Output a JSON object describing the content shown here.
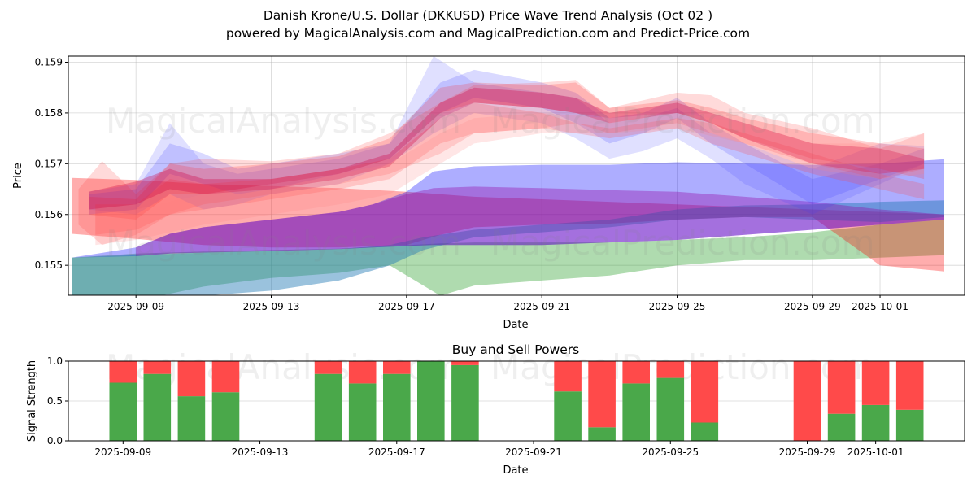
{
  "header": {
    "title_line1": "Danish Krone/U.S. Dollar (DKKUSD) Price Wave Trend Analysis (Oct 02 )",
    "title_line2": "powered by MagicalAnalysis.com and MagicalPrediction.com and Predict-Price.com"
  },
  "watermarks": {
    "left": "MagicalAnalysis.com",
    "right": "MagicalPrediction.com"
  },
  "chart_data": [
    {
      "type": "area",
      "title": "",
      "xlabel": "Date",
      "ylabel": "Price",
      "x_unit": "days relative to 2025-09-09",
      "xlim": [
        -2.0,
        24.5
      ],
      "ylim": [
        0.15441,
        0.15912
      ],
      "grid": true,
      "xticks": [
        {
          "day": 0,
          "label": "2025-09-09"
        },
        {
          "day": 4,
          "label": "2025-09-13"
        },
        {
          "day": 8,
          "label": "2025-09-17"
        },
        {
          "day": 12,
          "label": "2025-09-21"
        },
        {
          "day": 16,
          "label": "2025-09-25"
        },
        {
          "day": 20,
          "label": "2025-09-29"
        },
        {
          "day": 22,
          "label": "2025-10-01"
        }
      ],
      "yticks": [
        {
          "value": 0.155,
          "label": "0.155"
        },
        {
          "value": 0.156,
          "label": "0.156"
        },
        {
          "value": 0.157,
          "label": "0.157"
        },
        {
          "value": 0.158,
          "label": "0.158"
        },
        {
          "value": 0.159,
          "label": "0.159"
        }
      ],
      "bands": [
        {
          "name": "long-green",
          "color": "#2ca02c",
          "opacity": 0.38,
          "x": [
            -1.9,
            0,
            2,
            4,
            6,
            7.5,
            9,
            10,
            12,
            14,
            16,
            18,
            20,
            22,
            23.9
          ],
          "upper": [
            0.15515,
            0.15523,
            0.15527,
            0.1553,
            0.15533,
            0.15538,
            0.15543,
            0.15545,
            0.15545,
            0.15545,
            0.1555,
            0.15555,
            0.15565,
            0.1558,
            0.1559
          ],
          "lower": [
            0.1543,
            0.1543,
            0.15458,
            0.15475,
            0.15485,
            0.155,
            0.1544,
            0.1546,
            0.1547,
            0.1548,
            0.155,
            0.1551,
            0.1551,
            0.15515,
            0.1552
          ]
        },
        {
          "name": "long-red",
          "color": "#ff0000",
          "opacity": 0.32,
          "x": [
            -1.9,
            0,
            2,
            4,
            6,
            8,
            9,
            10,
            12,
            14,
            16,
            18,
            20,
            22,
            23.9
          ],
          "upper": [
            0.15672,
            0.15668,
            0.1566,
            0.15656,
            0.15652,
            0.15645,
            0.1564,
            0.15635,
            0.1563,
            0.15625,
            0.1562,
            0.15615,
            0.1561,
            0.15605,
            0.156
          ],
          "lower": [
            0.15562,
            0.15552,
            0.1554,
            0.15535,
            0.15535,
            0.1554,
            0.1556,
            0.15575,
            0.1558,
            0.15582,
            0.1559,
            0.15595,
            0.15595,
            0.155,
            0.15488
          ]
        },
        {
          "name": "long-blue",
          "color": "#0000ff",
          "opacity": 0.32,
          "x": [
            -1.9,
            0,
            1,
            2,
            4,
            6,
            7,
            8,
            8.8,
            10,
            12,
            14,
            16,
            18,
            20,
            22,
            23.9
          ],
          "upper": [
            0.15515,
            0.15535,
            0.15562,
            0.15575,
            0.1559,
            0.15605,
            0.1562,
            0.15645,
            0.15685,
            0.15695,
            0.15698,
            0.15698,
            0.15703,
            0.157,
            0.15698,
            0.157,
            0.15709
          ],
          "lower": [
            0.15515,
            0.15518,
            0.15523,
            0.15525,
            0.15528,
            0.15532,
            0.15535,
            0.15538,
            0.1554,
            0.1554,
            0.1554,
            0.15545,
            0.1555,
            0.1556,
            0.1557,
            0.1558,
            0.1559
          ]
        },
        {
          "name": "long-teal",
          "color": "#1f77b4",
          "opacity": 0.45,
          "x": [
            -1.9,
            0,
            2,
            4,
            6,
            7.5,
            8.5,
            10,
            12,
            14,
            16,
            18,
            20,
            22,
            23.9
          ],
          "upper": [
            0.15515,
            0.1552,
            0.15525,
            0.15528,
            0.15532,
            0.1554,
            0.15555,
            0.1557,
            0.1558,
            0.1559,
            0.1561,
            0.15618,
            0.1562,
            0.15625,
            0.15628
          ],
          "lower": [
            0.1543,
            0.1543,
            0.1544,
            0.1545,
            0.1547,
            0.155,
            0.1553,
            0.15555,
            0.15565,
            0.15575,
            0.1559,
            0.15595,
            0.1559,
            0.15585,
            0.15595
          ]
        },
        {
          "name": "long-purple",
          "color": "#9400a0",
          "opacity": 0.35,
          "x": [
            0,
            1,
            2,
            4,
            6,
            7,
            8,
            8.8,
            10,
            12,
            14,
            16,
            18,
            20,
            22,
            23.9
          ],
          "upper": [
            0.15535,
            0.15562,
            0.15575,
            0.1559,
            0.15605,
            0.1562,
            0.1564,
            0.15652,
            0.15655,
            0.15652,
            0.15648,
            0.15645,
            0.15635,
            0.15625,
            0.1561,
            0.156
          ],
          "lower": [
            0.15518,
            0.15523,
            0.15525,
            0.15528,
            0.15532,
            0.15535,
            0.15538,
            0.1554,
            0.1554,
            0.1554,
            0.15545,
            0.1555,
            0.1556,
            0.1557,
            0.1558,
            0.1559
          ]
        },
        {
          "name": "short-blue-1",
          "color": "#4040ff",
          "opacity": 0.16,
          "x": [
            -1.4,
            0,
            1,
            2,
            3,
            4,
            6,
            7.5,
            8.8,
            10,
            12,
            13,
            14,
            15,
            16,
            17,
            18,
            20,
            22,
            23.3
          ],
          "upper": [
            0.15645,
            0.1566,
            0.1578,
            0.157,
            0.1568,
            0.1569,
            0.1571,
            0.1574,
            0.15912,
            0.1586,
            0.1584,
            0.1583,
            0.1578,
            0.1579,
            0.1581,
            0.1576,
            0.1574,
            0.1569,
            0.1574,
            0.15735
          ],
          "lower": [
            0.1561,
            0.156,
            0.1564,
            0.1561,
            0.1562,
            0.1564,
            0.1566,
            0.157,
            0.1576,
            0.158,
            0.1578,
            0.1575,
            0.1571,
            0.15725,
            0.1575,
            0.1571,
            0.1566,
            0.156,
            0.1566,
            0.157
          ]
        },
        {
          "name": "short-blue-2",
          "color": "#4040ff",
          "opacity": 0.2,
          "x": [
            -1.4,
            0,
            1,
            2,
            3,
            4,
            6,
            7.5,
            9,
            10,
            12,
            13,
            14,
            15,
            16,
            17,
            18,
            20,
            22,
            23.3
          ],
          "upper": [
            0.1564,
            0.1565,
            0.1574,
            0.1572,
            0.1569,
            0.157,
            0.1572,
            0.1574,
            0.1586,
            0.15885,
            0.1586,
            0.1584,
            0.1579,
            0.158,
            0.1583,
            0.1578,
            0.1574,
            0.1567,
            0.157,
            0.1573
          ],
          "lower": [
            0.156,
            0.1561,
            0.1568,
            0.1566,
            0.1564,
            0.1565,
            0.1568,
            0.1571,
            0.158,
            0.1583,
            0.1581,
            0.1578,
            0.1574,
            0.1576,
            0.1579,
            0.1574,
            0.157,
            0.1562,
            0.1567,
            0.157
          ]
        },
        {
          "name": "short-red-1",
          "color": "#ff3030",
          "opacity": 0.18,
          "x": [
            -1.7,
            -1,
            0,
            1,
            2,
            4,
            6,
            7.5,
            9,
            10,
            12,
            13,
            14,
            16,
            17,
            18,
            20,
            22,
            23.3
          ],
          "upper": [
            0.1565,
            0.15705,
            0.1564,
            0.157,
            0.1571,
            0.15705,
            0.1572,
            0.1576,
            0.1582,
            0.15855,
            0.1586,
            0.15865,
            0.1581,
            0.1584,
            0.15835,
            0.158,
            0.1577,
            0.1573,
            0.1576
          ],
          "lower": [
            0.1558,
            0.1554,
            0.1556,
            0.156,
            0.1562,
            0.1564,
            0.1566,
            0.1568,
            0.1572,
            0.1576,
            0.1577,
            0.1578,
            0.1576,
            0.1578,
            0.1576,
            0.1574,
            0.157,
            0.1567,
            0.1569
          ]
        },
        {
          "name": "short-red-2",
          "color": "#ff2020",
          "opacity": 0.2,
          "x": [
            -1.4,
            0,
            1,
            2,
            4,
            6,
            7.5,
            9,
            10,
            12,
            13,
            14,
            16,
            17,
            18,
            20,
            22,
            23.3
          ],
          "upper": [
            0.15635,
            0.1563,
            0.157,
            0.1569,
            0.157,
            0.15715,
            0.1575,
            0.1585,
            0.1586,
            0.15855,
            0.1586,
            0.1581,
            0.15825,
            0.1581,
            0.1579,
            0.1576,
            0.1574,
            0.1573
          ],
          "lower": [
            0.156,
            0.1559,
            0.1564,
            0.1564,
            0.1566,
            0.1568,
            0.1571,
            0.158,
            0.1582,
            0.1581,
            0.158,
            0.1579,
            0.158,
            0.1578,
            0.1575,
            0.1571,
            0.1569,
            0.1567
          ]
        },
        {
          "name": "short-red-3",
          "color": "#ff4040",
          "opacity": 0.22,
          "x": [
            -1.2,
            0,
            1,
            2,
            4,
            6,
            7.5,
            9,
            10,
            12,
            13,
            14,
            16,
            17,
            18,
            20,
            22,
            23.3
          ],
          "upper": [
            0.1562,
            0.1562,
            0.1567,
            0.1566,
            0.1567,
            0.1569,
            0.1571,
            0.1579,
            0.1582,
            0.158,
            0.1578,
            0.1577,
            0.1579,
            0.1578,
            0.1576,
            0.1572,
            0.1568,
            0.1566
          ],
          "lower": [
            0.1556,
            0.1557,
            0.156,
            0.1561,
            0.1563,
            0.1565,
            0.1567,
            0.1574,
            0.1576,
            0.1577,
            0.1576,
            0.1575,
            0.1577,
            0.1574,
            0.1572,
            0.1568,
            0.1565,
            0.1563
          ]
        },
        {
          "name": "short-crimson",
          "color": "#d00040",
          "opacity": 0.32,
          "x": [
            -1.4,
            0,
            1,
            2,
            4,
            6,
            7.5,
            9,
            10,
            12,
            13,
            14,
            16,
            17,
            18,
            20,
            22,
            23.3
          ],
          "upper": [
            0.15645,
            0.15665,
            0.1569,
            0.1567,
            0.1567,
            0.1569,
            0.1572,
            0.1582,
            0.1585,
            0.1584,
            0.1583,
            0.158,
            0.1582,
            0.158,
            0.1578,
            0.1574,
            0.1573,
            0.1571
          ],
          "lower": [
            0.1561,
            0.1562,
            0.1565,
            0.1564,
            0.1565,
            0.1567,
            0.15695,
            0.1579,
            0.1582,
            0.1581,
            0.158,
            0.1578,
            0.158,
            0.1578,
            0.1575,
            0.157,
            0.1568,
            0.1569
          ]
        },
        {
          "name": "short-pink",
          "color": "#ff8080",
          "opacity": 0.2,
          "x": [
            -1.2,
            0,
            2,
            4,
            6,
            7.5,
            9,
            10,
            12,
            14,
            16,
            18,
            20,
            22,
            23.3
          ],
          "upper": [
            0.156,
            0.1561,
            0.1564,
            0.1566,
            0.1568,
            0.157,
            0.1576,
            0.1579,
            0.158,
            0.1579,
            0.158,
            0.1578,
            0.1574,
            0.1574,
            0.1576
          ],
          "lower": [
            0.1554,
            0.1555,
            0.1558,
            0.156,
            0.1562,
            0.1564,
            0.157,
            0.1574,
            0.1576,
            0.1576,
            0.1577,
            0.1574,
            0.1569,
            0.1567,
            0.1568
          ]
        }
      ]
    },
    {
      "type": "bar",
      "title": "Buy and Sell Powers",
      "xlabel": "Date",
      "ylabel": "Signal Strength",
      "x_unit": "days relative to 2025-09-09",
      "xlim": [
        -1.6,
        24.6
      ],
      "ylim": [
        0.0,
        1.0
      ],
      "grid": true,
      "xticks": [
        {
          "day": 0,
          "label": "2025-09-09"
        },
        {
          "day": 4,
          "label": "2025-09-13"
        },
        {
          "day": 8,
          "label": "2025-09-17"
        },
        {
          "day": 12,
          "label": "2025-09-21"
        },
        {
          "day": 16,
          "label": "2025-09-25"
        },
        {
          "day": 20,
          "label": "2025-09-29"
        },
        {
          "day": 22,
          "label": "2025-10-01"
        }
      ],
      "yticks": [
        {
          "value": 0.0,
          "label": "0.0"
        },
        {
          "value": 0.5,
          "label": "0.5"
        },
        {
          "value": 1.0,
          "label": "1.0"
        }
      ],
      "series": [
        {
          "name": "Buy",
          "color": "#4aa84a"
        },
        {
          "name": "Sell",
          "color": "#ff4a4a"
        }
      ],
      "categories": [
        "2025-09-09",
        "2025-09-10",
        "2025-09-11",
        "2025-09-12",
        "2025-09-15",
        "2025-09-16",
        "2025-09-17",
        "2025-09-18",
        "2025-09-19",
        "2025-09-22",
        "2025-09-23",
        "2025-09-24",
        "2025-09-25",
        "2025-09-26",
        "2025-09-29",
        "2025-09-30",
        "2025-10-01",
        "2025-10-02"
      ],
      "days": [
        0,
        1,
        2,
        3,
        6,
        7,
        8,
        9,
        10,
        13,
        14,
        15,
        16,
        17,
        20,
        21,
        22,
        23
      ],
      "buy": [
        0.73,
        0.84,
        0.56,
        0.61,
        0.84,
        0.72,
        0.84,
        1.0,
        0.95,
        0.62,
        0.17,
        0.72,
        0.79,
        0.23,
        0.0,
        0.34,
        0.45,
        0.39
      ]
    }
  ]
}
